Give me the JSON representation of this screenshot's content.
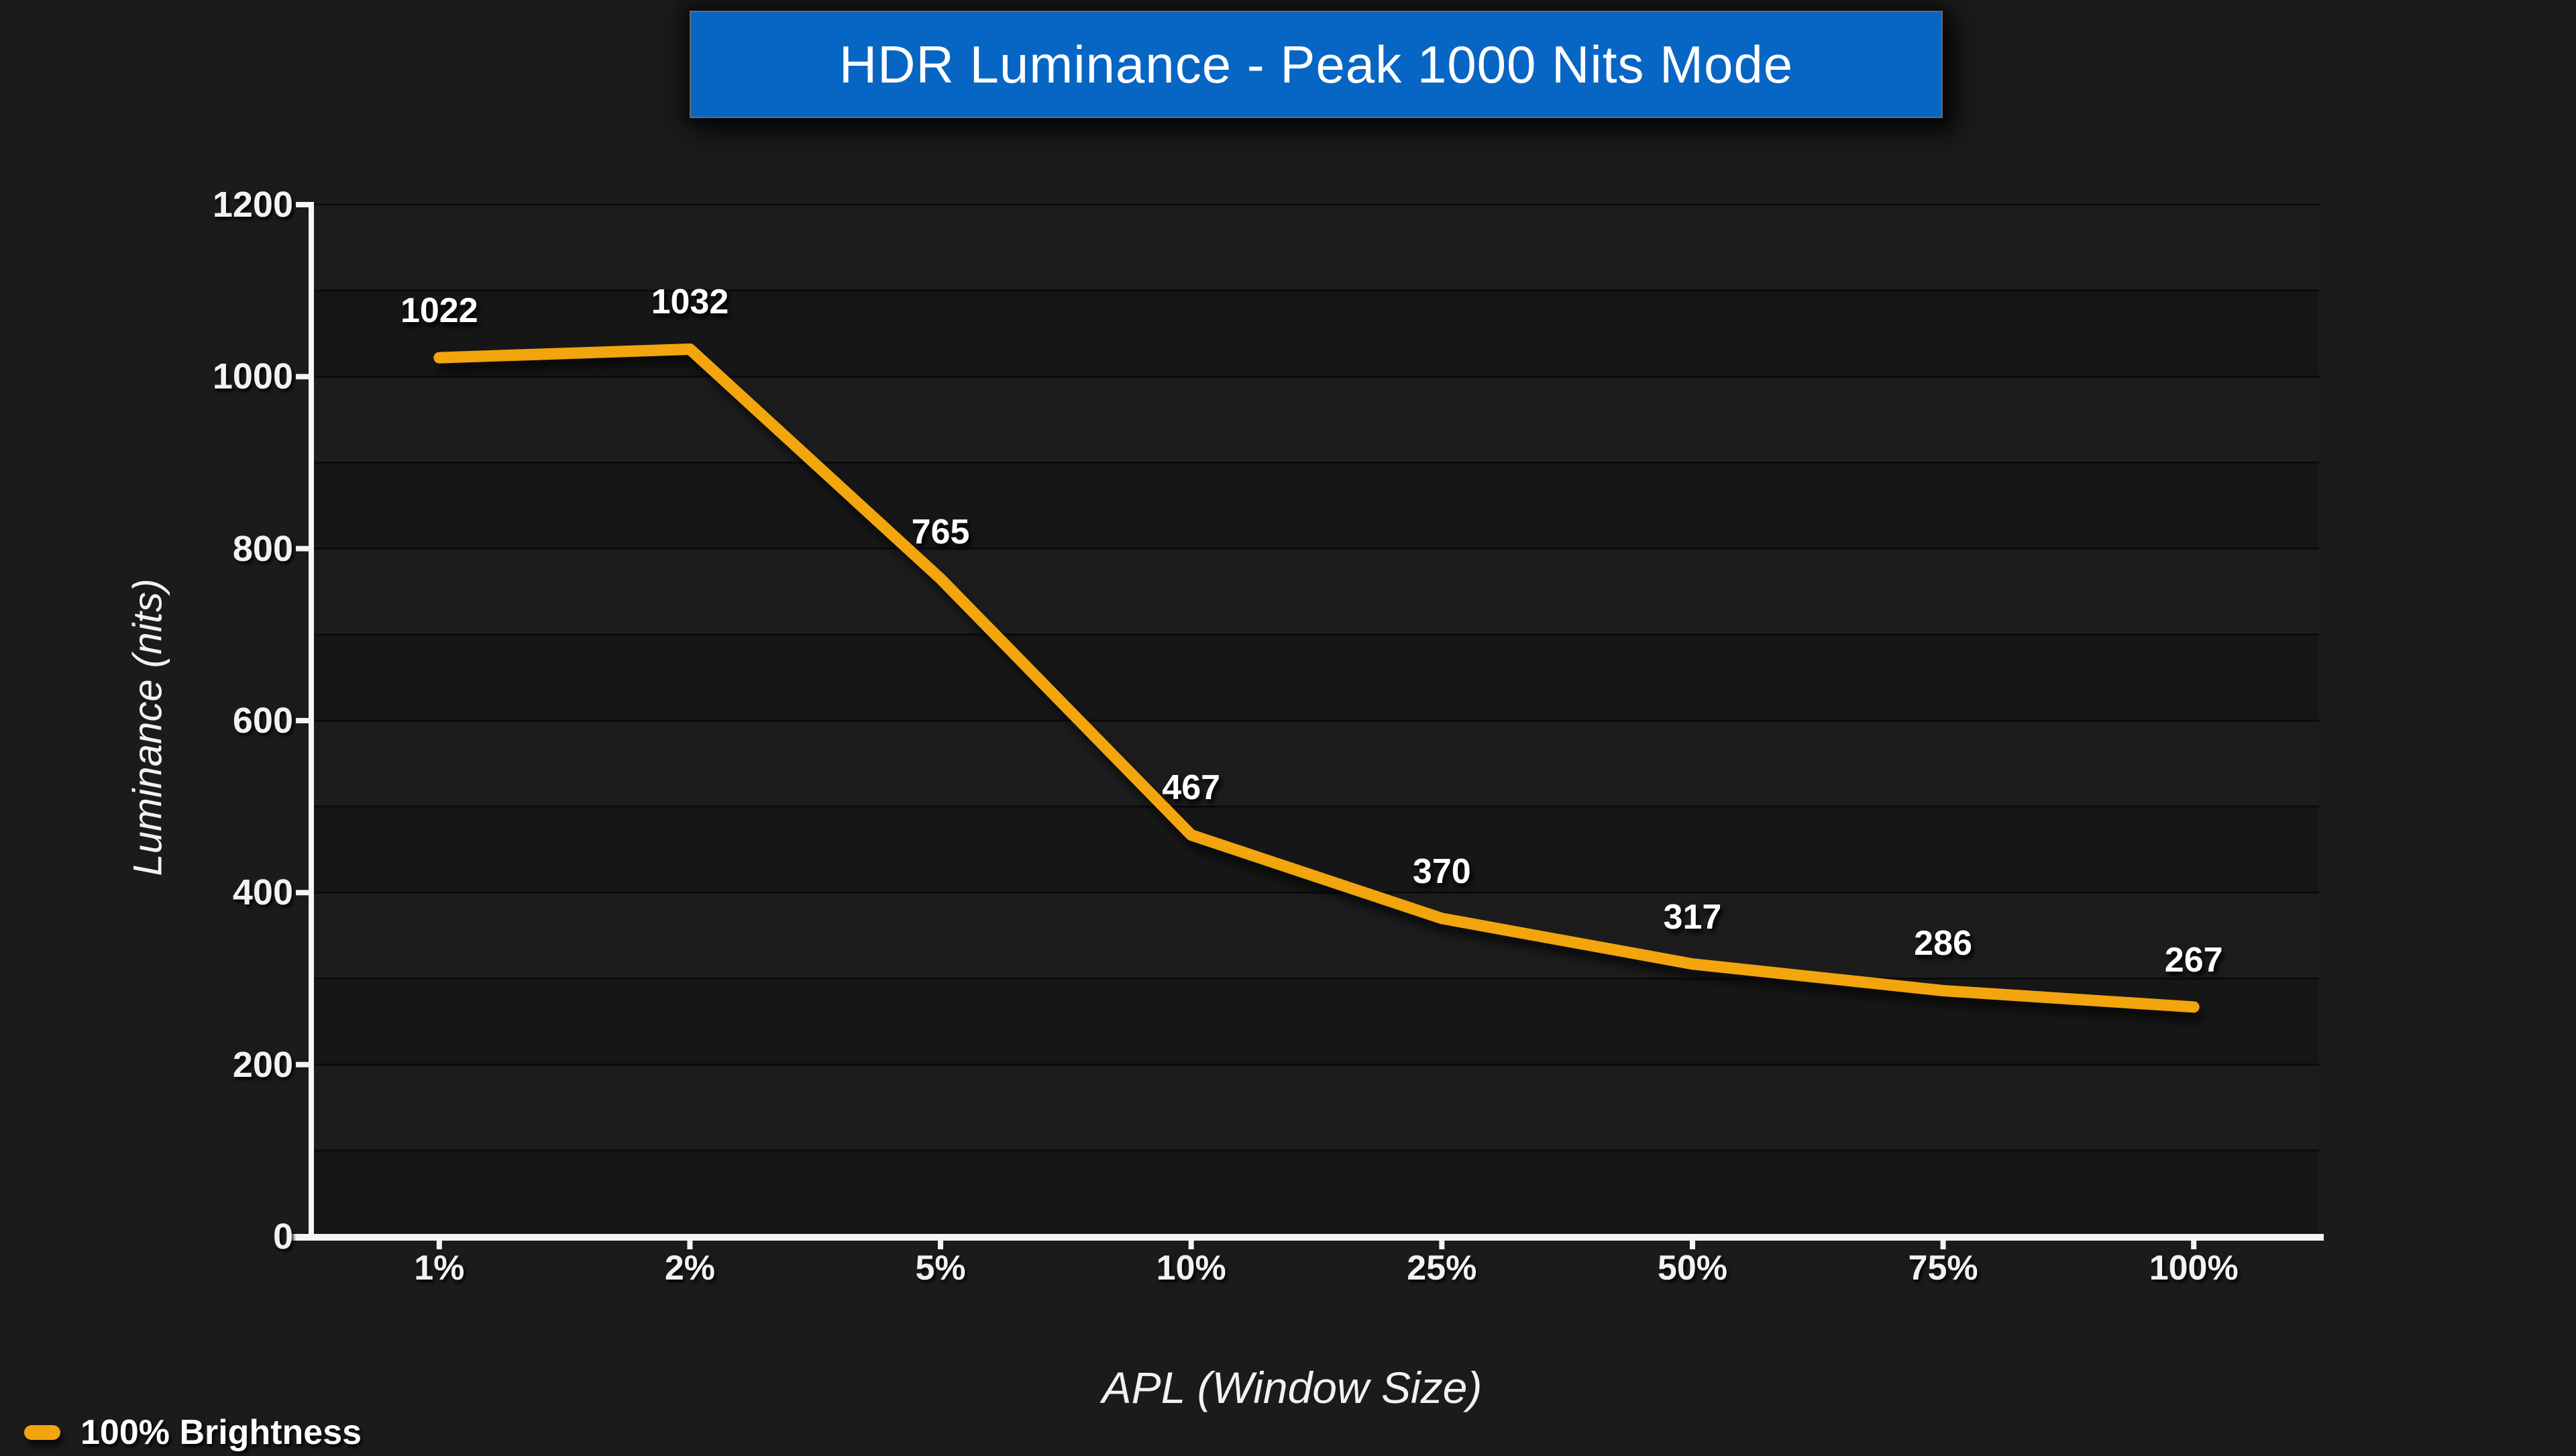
{
  "page": {
    "background": "#1b1b1b"
  },
  "title_banner": {
    "text": "HDR Luminance - Peak 1000 Nits Mode",
    "bg_color": "#0766C4",
    "border_color": "#6a6a6a",
    "text_color": "#ffffff"
  },
  "chart_data": {
    "type": "line",
    "title": "HDR Luminance - Peak 1000 Nits Mode",
    "categories": [
      "1%",
      "2%",
      "5%",
      "10%",
      "25%",
      "50%",
      "75%",
      "100%"
    ],
    "series": [
      {
        "name": "100% Brightness",
        "color": "#F2A50C",
        "values": [
          1022,
          1032,
          765,
          467,
          370,
          317,
          286,
          267
        ]
      }
    ],
    "xlabel": "APL (Window Size)",
    "ylabel": "Luminance (nits)",
    "ylim": [
      0,
      1200
    ],
    "ytick_interval": 200,
    "gridline_interval": 100,
    "grid": true,
    "data_labels": true,
    "legend_position": "bottom-left"
  },
  "colors": {
    "axis_line": "#f5f5f5",
    "plot_band_light": "#1c1c1c",
    "plot_band_dark": "#161616",
    "gridline": "#0a0a0a",
    "series_orange": "#F2A50C"
  }
}
